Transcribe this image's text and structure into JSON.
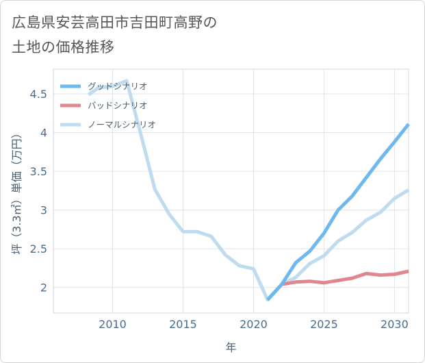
{
  "title_line1": "広島県安芸高田市吉田町高野の",
  "title_line2": "土地の価格推移",
  "chart_data": {
    "type": "line",
    "xlabel": "年",
    "ylabel": "坪（3.3㎡）単価（万円）",
    "xlim": [
      2005.8,
      2031
    ],
    "ylim": [
      1.67,
      4.82
    ],
    "x_ticks": [
      2010,
      2015,
      2020,
      2025,
      2030
    ],
    "y_ticks": [
      2,
      2.5,
      3,
      3.5,
      4,
      4.5
    ],
    "x_tick_labels": [
      "2010",
      "2015",
      "2020",
      "2025",
      "2030"
    ],
    "y_tick_labels": [
      "2",
      "2.5",
      "3",
      "3.5",
      "4",
      "4.5"
    ],
    "grid": true,
    "legend_position": "top-left",
    "series": [
      {
        "name": "グッドシナリオ",
        "color": "#6cb8ef",
        "x": [
          2021,
          2022,
          2023,
          2024,
          2025,
          2026,
          2027,
          2028,
          2029,
          2030,
          2031
        ],
        "y": [
          1.84,
          2.04,
          2.32,
          2.47,
          2.7,
          3.0,
          3.18,
          3.42,
          3.66,
          3.88,
          4.11
        ]
      },
      {
        "name": "バッドシナリオ",
        "color": "#e0868f",
        "x": [
          2021,
          2022,
          2023,
          2024,
          2025,
          2026,
          2027,
          2028,
          2029,
          2030,
          2031
        ],
        "y": [
          1.84,
          2.04,
          2.07,
          2.08,
          2.06,
          2.09,
          2.12,
          2.18,
          2.16,
          2.17,
          2.21
        ]
      },
      {
        "name": "ノーマルシナリオ",
        "color": "#bfdcee",
        "x": [
          2008.3,
          2009,
          2010,
          2011,
          2012,
          2013,
          2014,
          2015,
          2016,
          2017,
          2018,
          2019,
          2020,
          2021,
          2022,
          2023,
          2024,
          2025,
          2026,
          2027,
          2028,
          2029,
          2030,
          2031
        ],
        "y": [
          4.49,
          4.58,
          4.6,
          4.67,
          3.98,
          3.27,
          2.95,
          2.72,
          2.72,
          2.66,
          2.42,
          2.28,
          2.24,
          1.84,
          2.04,
          2.13,
          2.31,
          2.41,
          2.6,
          2.71,
          2.87,
          2.97,
          3.15,
          3.26
        ]
      }
    ]
  }
}
